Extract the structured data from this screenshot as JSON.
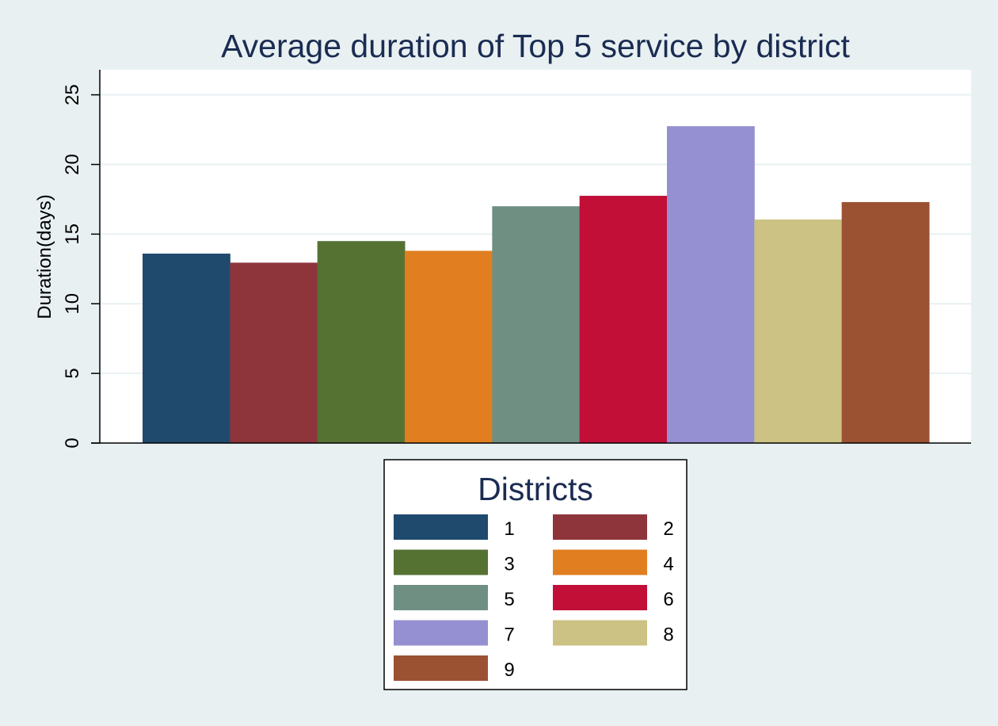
{
  "chart_data": {
    "type": "bar",
    "title": "Average duration of Top 5 service by district",
    "xlabel": "",
    "ylabel": "Duration(days)",
    "ylim": [
      0,
      26.8
    ],
    "yticks": [
      0,
      5,
      10,
      15,
      20,
      25
    ],
    "grid": true,
    "legend": {
      "title": "Districts",
      "placement": "bottom-center",
      "columns": 2
    },
    "series": [
      {
        "name": "1",
        "values": [
          13.6
        ],
        "color": "#1f4a6e"
      },
      {
        "name": "2",
        "values": [
          12.95
        ],
        "color": "#8e353c"
      },
      {
        "name": "3",
        "values": [
          14.5
        ],
        "color": "#557233"
      },
      {
        "name": "4",
        "values": [
          13.8
        ],
        "color": "#e07e20"
      },
      {
        "name": "5",
        "values": [
          17.0
        ],
        "color": "#6f8f83"
      },
      {
        "name": "6",
        "values": [
          17.75
        ],
        "color": "#c10f37"
      },
      {
        "name": "7",
        "values": [
          22.75
        ],
        "color": "#9590d1"
      },
      {
        "name": "8",
        "values": [
          16.05
        ],
        "color": "#cbc283"
      },
      {
        "name": "9",
        "values": [
          17.3
        ],
        "color": "#9b5233"
      }
    ]
  }
}
